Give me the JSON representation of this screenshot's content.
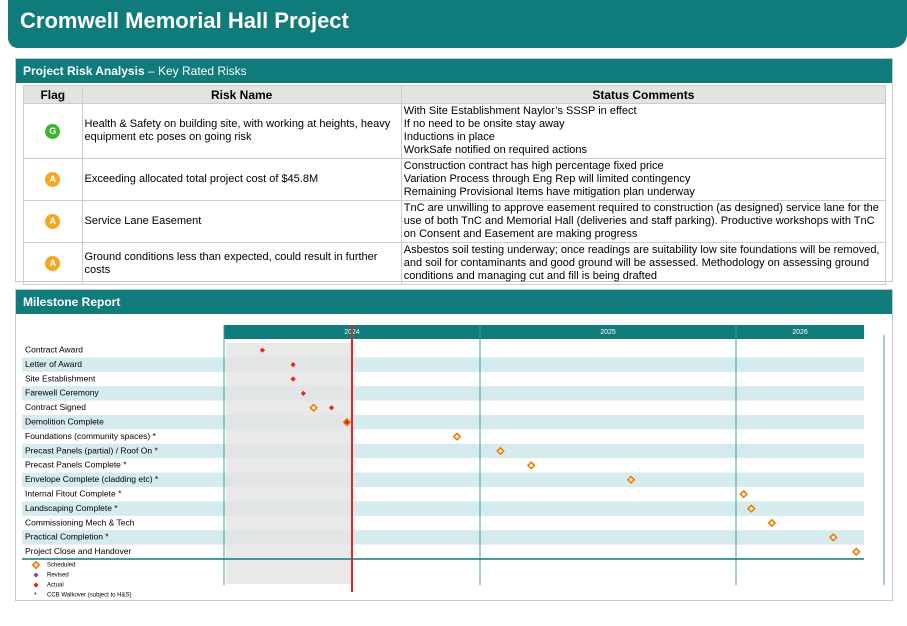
{
  "header": {
    "title": "Cromwell Memorial Hall Project"
  },
  "risk_section": {
    "title_bold": "Project Risk Analysis",
    "title_rest": "– Key Rated Risks",
    "columns": [
      "Flag",
      "Risk Name",
      "Status Comments"
    ],
    "rows": [
      {
        "flag": "G",
        "flag_color": "#3cb62e",
        "risk": "Health & Safety on building site, with working at heights, heavy equipment etc poses on going risk",
        "status": [
          "With Site Establishment Naylor’s SSSP in effect",
          "If no need to be onsite stay away",
          "Inductions in place",
          "WorkSafe notified on required actions"
        ]
      },
      {
        "flag": "A",
        "flag_color": "#f5a623",
        "risk": "Exceeding allocated total project cost of $45.8M",
        "status": [
          "Construction contract has high percentage fixed price",
          "Variation Process through Eng Rep will limited contingency",
          "Remaining Provisional Items have mitigation plan underway"
        ]
      },
      {
        "flag": "A",
        "flag_color": "#f5a623",
        "risk": "Service Lane Easement",
        "status": [
          "TnC are unwilling to approve easement required to construction (as designed) service lane for the use of both TnC and Memorial Hall (deliveries and staff parking). Productive workshops with TnC on Consent and Easement are making progress"
        ]
      },
      {
        "flag": "A",
        "flag_color": "#f5a623",
        "risk": "Ground conditions less than expected, could result in further costs",
        "status": [
          "Asbestos soil testing underway; once readings are suitability low site foundations will be removed, and soil for contaminants and good ground will be assessed. Methodology on assessing ground conditions and managing cut and fill is being drafted"
        ]
      }
    ]
  },
  "milestone_section": {
    "title": "Milestone Report"
  },
  "chart_data": {
    "type": "milestone",
    "categories": [
      "Contract Award",
      "Letter of Award",
      "Site Establishment",
      "Farewell Ceremony",
      "Contract Signed",
      "Demolition Complete",
      "Foundations  (community spaces) *",
      "Precast Panels (partial) / Roof On *",
      "Precast Panels Complete  *",
      "Envelope Complete (cladding etc) *",
      "Internal Fitout Complete  *",
      "Landscaping Complete  *",
      "Commissioning  Mech & Tech",
      "Practical Completion  *",
      "Project Close and Handover"
    ],
    "series": [
      {
        "name": "Scheduled",
        "color": "#f07d00",
        "values": [
          null,
          null,
          null,
          null,
          2024.35,
          2024.48,
          2024.91,
          2025.08,
          2025.2,
          2025.59,
          2026.03,
          2026.06,
          2026.14,
          2026.38,
          2026.47
        ]
      },
      {
        "name": "Revised",
        "color": "#7b4fa0",
        "values": [
          null,
          null,
          null,
          null,
          null,
          null,
          null,
          null,
          null,
          null,
          null,
          null,
          null,
          null,
          null
        ]
      },
      {
        "name": "Actual",
        "color": "#e3261c",
        "values": [
          2024.15,
          2024.27,
          2024.27,
          2024.31,
          2024.42,
          2024.48,
          null,
          null,
          null,
          null,
          null,
          null,
          null,
          null,
          null
        ]
      }
    ],
    "note": "CCB Walkover (subject to H&S)",
    "note_symbol": "*",
    "xlim": [
      2024,
      2026.5
    ],
    "xticks": [
      2024,
      2025,
      2026
    ],
    "today": 2024.5
  }
}
